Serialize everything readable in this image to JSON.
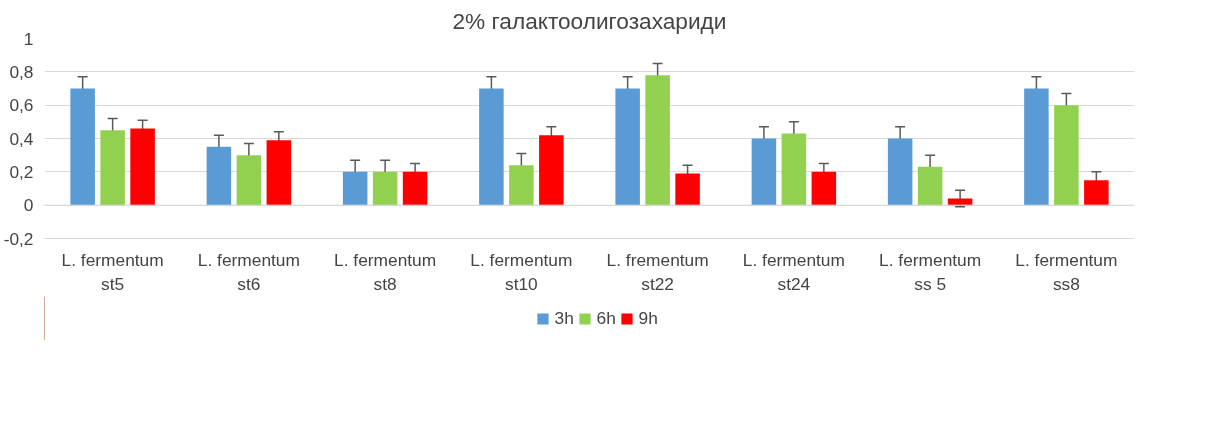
{
  "chart_data": {
    "type": "bar",
    "title": "2% галактоолигозахариди",
    "categories": [
      "L. fermentum\nst5",
      "L. fermentum\nst6",
      "L. fermentum\nst8",
      "L. fermentum\nst10",
      "L. frementum\nst22",
      "L. fermentum\nst24",
      "L. fermentum\nss 5",
      "L. fermentum\nss8"
    ],
    "series": [
      {
        "name": "3h",
        "color": "#5b9bd5",
        "values": [
          0.7,
          0.35,
          0.2,
          0.7,
          0.7,
          0.4,
          0.4,
          0.7
        ],
        "errors": [
          0.07,
          0.07,
          0.07,
          0.07,
          0.07,
          0.07,
          0.07,
          0.07
        ]
      },
      {
        "name": "6h",
        "color": "#92d050",
        "values": [
          0.45,
          0.3,
          0.2,
          0.24,
          0.78,
          0.43,
          0.23,
          0.6
        ],
        "errors": [
          0.07,
          0.07,
          0.07,
          0.07,
          0.07,
          0.07,
          0.07,
          0.07
        ]
      },
      {
        "name": "9h",
        "color": "#ff0000",
        "values": [
          0.46,
          0.39,
          0.2,
          0.42,
          0.19,
          0.2,
          0.04,
          0.15
        ],
        "errors": [
          0.05,
          0.05,
          0.05,
          0.05,
          0.05,
          0.05,
          0.05,
          0.05
        ]
      }
    ],
    "ylim": [
      -0.2,
      1
    ],
    "yticks": [
      {
        "value": -0.2,
        "label": "-0,2"
      },
      0,
      {
        "value": 0.2,
        "label": "0,2"
      },
      {
        "value": 0.4,
        "label": "0,4"
      },
      {
        "value": 0.6,
        "label": "0,6"
      },
      {
        "value": 0.8,
        "label": "0,8"
      },
      1
    ],
    "grid": "y",
    "legend": "bottom"
  }
}
